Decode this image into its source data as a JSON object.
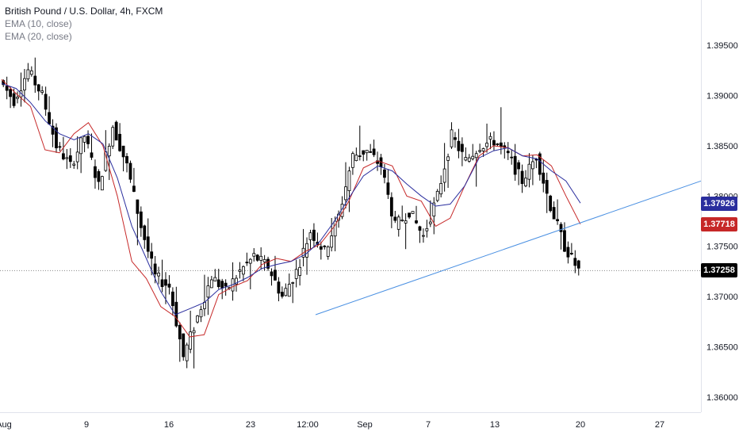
{
  "header": {
    "symbol_title": "British Pound / U.S. Dollar, 4h, FXCM",
    "ema10_label": "EMA (10, close)",
    "ema20_label": "EMA (20, close)"
  },
  "price_tags": {
    "ema20": {
      "value": "1.37926",
      "color": "#2a2e9e"
    },
    "ema10": {
      "value": "1.37718",
      "color": "#c62828"
    },
    "last": {
      "value": "1.37258",
      "color": "#000000"
    }
  },
  "colors": {
    "candle": "#000000",
    "ema10": "#c62828",
    "ema20": "#2a2e9e",
    "trendline": "#4a90e2"
  },
  "chart_data": {
    "type": "line",
    "ylim": [
      1.3585,
      1.3995
    ],
    "y_ticks": [
      "1.39500",
      "1.39000",
      "1.38500",
      "1.38000",
      "1.37500",
      "1.37000",
      "1.36500",
      "1.36000"
    ],
    "x_ticks": [
      "Aug",
      "9",
      "16",
      "23",
      "12:00",
      "Sep",
      "7",
      "13",
      "20",
      "27"
    ],
    "last_price": 1.37258,
    "series": [
      {
        "name": "EMA (10, close)",
        "values": [
          1.3916,
          1.3902,
          1.3889,
          1.3846,
          1.3843,
          1.3862,
          1.3873,
          1.385,
          1.38,
          1.3735,
          1.3718,
          1.369,
          1.368,
          1.366,
          1.3662,
          1.3702,
          1.371,
          1.3716,
          1.3732,
          1.3738,
          1.3735,
          1.3745,
          1.3752,
          1.377,
          1.3795,
          1.3828,
          1.3835,
          1.383,
          1.38,
          1.3795,
          1.377,
          1.3778,
          1.381,
          1.384,
          1.385,
          1.3848,
          1.384,
          1.3841,
          1.383,
          1.38,
          1.3772
        ]
      },
      {
        "name": "EMA (20, close)",
        "values": [
          1.3912,
          1.3907,
          1.3893,
          1.3875,
          1.3862,
          1.3856,
          1.3862,
          1.3852,
          1.3818,
          1.377,
          1.3738,
          1.3705,
          1.3682,
          1.3688,
          1.3694,
          1.3707,
          1.3712,
          1.3719,
          1.3728,
          1.3732,
          1.3735,
          1.3742,
          1.3755,
          1.3775,
          1.3798,
          1.382,
          1.383,
          1.3825,
          1.3812,
          1.38,
          1.379,
          1.3792,
          1.381,
          1.3838,
          1.3845,
          1.3848,
          1.384,
          1.3837,
          1.3825,
          1.3815,
          1.3793
        ]
      }
    ],
    "ohlc_points": [
      [
        1.3915,
        1.3925,
        1.388,
        1.3895
      ],
      [
        1.3895,
        1.3935,
        1.3885,
        1.3925
      ],
      [
        1.3925,
        1.395,
        1.389,
        1.39
      ],
      [
        1.39,
        1.391,
        1.384,
        1.385
      ],
      [
        1.385,
        1.387,
        1.382,
        1.383
      ],
      [
        1.383,
        1.387,
        1.381,
        1.386
      ],
      [
        1.386,
        1.3875,
        1.38,
        1.381
      ],
      [
        1.381,
        1.388,
        1.38,
        1.387
      ],
      [
        1.387,
        1.388,
        1.3815,
        1.383
      ],
      [
        1.383,
        1.384,
        1.373,
        1.377
      ],
      [
        1.377,
        1.379,
        1.371,
        1.372
      ],
      [
        1.372,
        1.375,
        1.368,
        1.371
      ],
      [
        1.371,
        1.372,
        1.362,
        1.364
      ],
      [
        1.364,
        1.37,
        1.3605,
        1.368
      ],
      [
        1.368,
        1.374,
        1.367,
        1.372
      ],
      [
        1.372,
        1.3735,
        1.369,
        1.3705
      ],
      [
        1.3705,
        1.3745,
        1.37,
        1.3725
      ],
      [
        1.3725,
        1.375,
        1.369,
        1.374
      ],
      [
        1.374,
        1.3755,
        1.372,
        1.373
      ],
      [
        1.373,
        1.375,
        1.369,
        1.37
      ],
      [
        1.37,
        1.373,
        1.368,
        1.3725
      ],
      [
        1.3725,
        1.378,
        1.371,
        1.3765
      ],
      [
        1.3765,
        1.377,
        1.373,
        1.3745
      ],
      [
        1.3745,
        1.379,
        1.3735,
        1.378
      ],
      [
        1.378,
        1.385,
        1.377,
        1.384
      ],
      [
        1.384,
        1.389,
        1.383,
        1.3845
      ],
      [
        1.3845,
        1.3855,
        1.382,
        1.383
      ],
      [
        1.383,
        1.3835,
        1.376,
        1.377
      ],
      [
        1.377,
        1.38,
        1.373,
        1.3785
      ],
      [
        1.3785,
        1.38,
        1.3745,
        1.376
      ],
      [
        1.376,
        1.381,
        1.375,
        1.38
      ],
      [
        1.38,
        1.387,
        1.379,
        1.386
      ],
      [
        1.386,
        1.3875,
        1.382,
        1.3835
      ],
      [
        1.3835,
        1.386,
        1.379,
        1.385
      ],
      [
        1.385,
        1.3885,
        1.384,
        1.3855
      ],
      [
        1.3855,
        1.3912,
        1.383,
        1.384
      ],
      [
        1.384,
        1.386,
        1.38,
        1.3815
      ],
      [
        1.3815,
        1.385,
        1.38,
        1.384
      ],
      [
        1.384,
        1.3845,
        1.377,
        1.379
      ],
      [
        1.379,
        1.381,
        1.3735,
        1.375
      ],
      [
        1.375,
        1.376,
        1.372,
        1.3726
      ]
    ],
    "trendline": {
      "from": [
        398,
        1.3682
      ],
      "to": [
        884,
        1.3815
      ]
    }
  }
}
